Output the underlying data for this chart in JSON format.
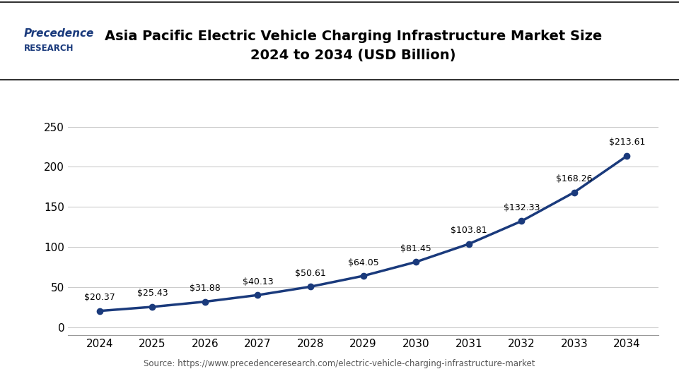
{
  "title_line1": "Asia Pacific Electric Vehicle Charging Infrastructure Market Size",
  "title_line2": "2024 to 2034 (USD Billion)",
  "source": "Source: https://www.precedenceresearch.com/electric-vehicle-charging-infrastructure-market",
  "years": [
    2024,
    2025,
    2026,
    2027,
    2028,
    2029,
    2030,
    2031,
    2032,
    2033,
    2034
  ],
  "values": [
    20.37,
    25.43,
    31.88,
    40.13,
    50.61,
    64.05,
    81.45,
    103.81,
    132.33,
    168.26,
    213.61
  ],
  "labels": [
    "$20.37",
    "$25.43",
    "$31.88",
    "$40.13",
    "$50.61",
    "$64.05",
    "$81.45",
    "$103.81",
    "$132.33",
    "$168.26",
    "$213.61"
  ],
  "line_color": "#1a3a7c",
  "marker_color": "#1a3a7c",
  "bg_color": "#ffffff",
  "title_color": "#000000",
  "grid_color": "#cccccc",
  "yticks": [
    0,
    50,
    100,
    150,
    200,
    250
  ],
  "ylim": [
    -10,
    275
  ],
  "logo_text_top": "Precedence",
  "logo_text_bottom": "RESEARCH"
}
